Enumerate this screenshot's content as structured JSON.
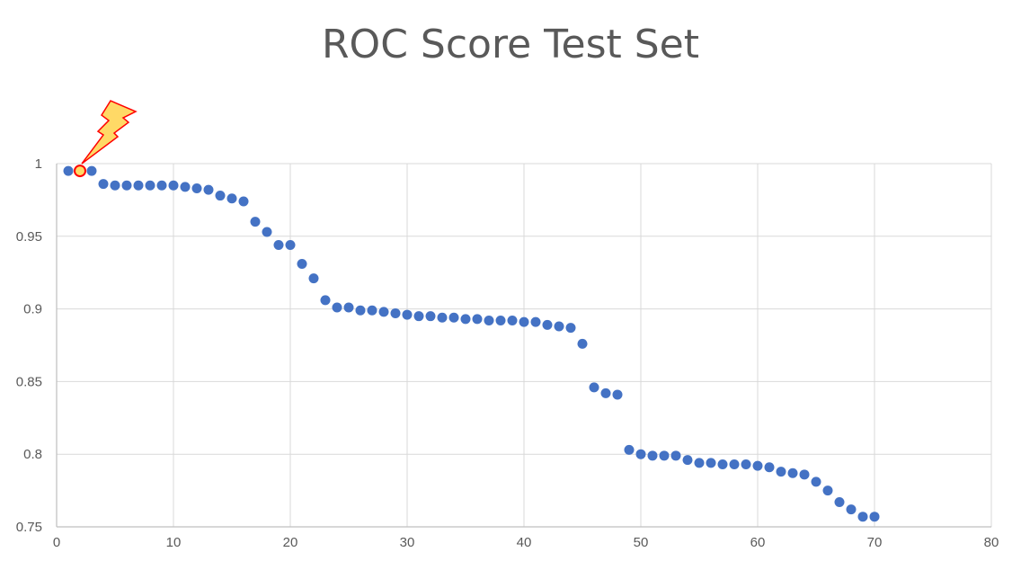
{
  "chart_data": {
    "type": "scatter",
    "title": "ROC Score Test Set",
    "xlim": [
      0,
      80
    ],
    "ylim": [
      0.75,
      1
    ],
    "x_ticks": [
      0,
      10,
      20,
      30,
      40,
      50,
      60,
      70,
      80
    ],
    "y_ticks": [
      0.75,
      0.8,
      0.85,
      0.9,
      0.95,
      1
    ],
    "x_tick_labels": [
      "0",
      "10",
      "20",
      "30",
      "40",
      "50",
      "60",
      "70",
      "80"
    ],
    "y_tick_labels": [
      "0.75",
      "0.8",
      "0.85",
      "0.9",
      "0.95",
      "1"
    ],
    "grid": true,
    "marker_color": "#4472C4",
    "highlight_color": "#FF0000",
    "highlight_fill": "#FFD966",
    "highlight_index": 1,
    "annotation_icon": "lightning-icon",
    "series": [
      {
        "x": [
          1,
          2,
          3,
          4,
          5,
          6,
          7,
          8,
          9,
          10,
          11,
          12,
          13,
          14,
          15,
          16,
          17,
          18,
          19,
          20,
          21,
          22,
          23,
          24,
          25,
          26,
          27,
          28,
          29,
          30,
          31,
          32,
          33,
          34,
          35,
          36,
          37,
          38,
          39,
          40,
          41,
          42,
          43,
          44,
          45,
          46,
          47,
          48,
          49,
          50,
          51,
          52,
          53,
          54,
          55,
          56,
          57,
          58,
          59,
          60,
          61,
          62,
          63,
          64,
          65,
          66,
          67,
          68,
          69,
          70
        ],
        "y": [
          0.995,
          0.995,
          0.995,
          0.986,
          0.985,
          0.985,
          0.985,
          0.985,
          0.985,
          0.985,
          0.984,
          0.983,
          0.982,
          0.978,
          0.976,
          0.974,
          0.96,
          0.953,
          0.944,
          0.944,
          0.931,
          0.921,
          0.906,
          0.901,
          0.901,
          0.899,
          0.899,
          0.898,
          0.897,
          0.896,
          0.895,
          0.895,
          0.894,
          0.894,
          0.893,
          0.893,
          0.892,
          0.892,
          0.892,
          0.891,
          0.891,
          0.889,
          0.888,
          0.887,
          0.876,
          0.846,
          0.842,
          0.841,
          0.803,
          0.8,
          0.799,
          0.799,
          0.799,
          0.796,
          0.794,
          0.794,
          0.793,
          0.793,
          0.793,
          0.792,
          0.791,
          0.788,
          0.787,
          0.786,
          0.781,
          0.775,
          0.767,
          0.762,
          0.757,
          0.757
        ]
      }
    ]
  }
}
